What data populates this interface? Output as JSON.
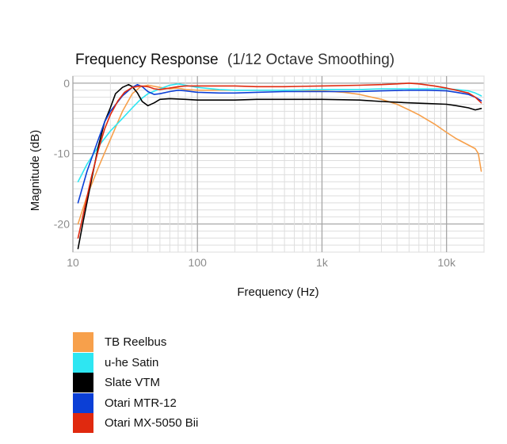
{
  "chart_data": {
    "type": "line",
    "title": "Frequency Response",
    "subtitle": "(1/12 Octave Smoothing)",
    "xlabel": "Frequency (Hz)",
    "ylabel": "Magnitude (dB)",
    "xscale": "log",
    "xlim": [
      10,
      20000
    ],
    "ylim": [
      -24,
      1
    ],
    "xticks": [
      {
        "value": 10,
        "label": "10"
      },
      {
        "value": 100,
        "label": "100"
      },
      {
        "value": 1000,
        "label": "1k"
      },
      {
        "value": 10000,
        "label": "10k"
      }
    ],
    "yticks": [
      {
        "value": 0,
        "label": "0"
      },
      {
        "value": -10,
        "label": "-10"
      },
      {
        "value": -20,
        "label": "-20"
      }
    ],
    "grid": true,
    "legend_position": "bottom-left",
    "series": [
      {
        "name": "TB Reelbus",
        "color": "#f7a04b",
        "x": [
          11,
          13,
          16,
          20,
          25,
          30,
          35,
          40,
          50,
          60,
          70,
          80,
          100,
          150,
          200,
          300,
          500,
          700,
          1000,
          1500,
          2000,
          3000,
          4000,
          5000,
          6000,
          8000,
          10000,
          12000,
          15000,
          17000,
          18000,
          19000
        ],
        "y": [
          -20,
          -16,
          -12,
          -8,
          -4,
          -1.5,
          -0.5,
          -0.3,
          -0.6,
          -0.8,
          -0.7,
          -0.9,
          -1.0,
          -1.0,
          -1.0,
          -1.0,
          -1.0,
          -1.0,
          -1.1,
          -1.3,
          -1.6,
          -2.3,
          -3.0,
          -3.8,
          -4.5,
          -5.8,
          -7.0,
          -7.9,
          -8.8,
          -9.3,
          -10.0,
          -12.5
        ]
      },
      {
        "name": "u-he Satin",
        "color": "#2ee6f2",
        "x": [
          11,
          13,
          16,
          20,
          25,
          30,
          35,
          40,
          50,
          60,
          70,
          80,
          100,
          150,
          200,
          300,
          500,
          1000,
          2000,
          3000,
          5000,
          7000,
          10000,
          12000,
          15000,
          17000,
          19000
        ],
        "y": [
          -14,
          -11.5,
          -9,
          -6.8,
          -5,
          -3.5,
          -2.3,
          -1.5,
          -0.8,
          -0.3,
          -0.1,
          -0.3,
          -0.6,
          -0.9,
          -1.0,
          -1.0,
          -1.0,
          -0.9,
          -0.9,
          -0.8,
          -0.8,
          -0.8,
          -0.8,
          -0.9,
          -1.1,
          -1.4,
          -1.8
        ]
      },
      {
        "name": "Slate VTM",
        "color": "#000000",
        "x": [
          11,
          12,
          14,
          16,
          18,
          20,
          22,
          25,
          28,
          30,
          33,
          36,
          40,
          45,
          50,
          60,
          80,
          100,
          150,
          200,
          300,
          500,
          1000,
          2000,
          3000,
          5000,
          7000,
          10000,
          12000,
          15000,
          17000,
          19000
        ],
        "y": [
          -23.5,
          -20,
          -14,
          -9,
          -5.5,
          -3.5,
          -1.5,
          -0.6,
          -0.2,
          -0.5,
          -1.4,
          -2.6,
          -3.2,
          -2.8,
          -2.3,
          -2.2,
          -2.3,
          -2.4,
          -2.4,
          -2.4,
          -2.3,
          -2.3,
          -2.3,
          -2.4,
          -2.6,
          -2.8,
          -2.9,
          -3.0,
          -3.2,
          -3.5,
          -3.8,
          -3.6
        ]
      },
      {
        "name": "Otari MTR-12",
        "color": "#0b3fd6",
        "x": [
          11,
          13,
          16,
          18,
          20,
          25,
          30,
          33,
          36,
          40,
          45,
          50,
          60,
          70,
          80,
          100,
          150,
          200,
          300,
          500,
          1000,
          2000,
          3000,
          5000,
          7000,
          10000,
          12000,
          15000,
          17000,
          19000
        ],
        "y": [
          -17,
          -12.5,
          -8,
          -5.5,
          -4,
          -1.8,
          -0.6,
          -0.2,
          -0.5,
          -1.2,
          -1.6,
          -1.5,
          -1.2,
          -1.0,
          -1.1,
          -1.3,
          -1.4,
          -1.4,
          -1.3,
          -1.2,
          -1.2,
          -1.2,
          -1.1,
          -1.0,
          -1.0,
          -1.1,
          -1.3,
          -1.6,
          -2.0,
          -2.5
        ]
      },
      {
        "name": "Otari MX-5050 Bii",
        "color": "#e0290f",
        "x": [
          11,
          12,
          14,
          16,
          18,
          20,
          23,
          26,
          30,
          35,
          40,
          45,
          50,
          60,
          70,
          80,
          100,
          150,
          200,
          300,
          500,
          1000,
          2000,
          3000,
          4000,
          5000,
          6000,
          8000,
          10000,
          12000,
          15000,
          17000,
          19000
        ],
        "y": [
          -22,
          -19,
          -13.5,
          -9.5,
          -6.5,
          -4.5,
          -2.5,
          -1.3,
          -0.6,
          -0.4,
          -0.5,
          -0.8,
          -0.9,
          -0.7,
          -0.5,
          -0.4,
          -0.4,
          -0.4,
          -0.4,
          -0.5,
          -0.5,
          -0.4,
          -0.3,
          -0.2,
          -0.1,
          0.0,
          -0.1,
          -0.4,
          -0.7,
          -1.0,
          -1.4,
          -2.0,
          -2.8
        ]
      }
    ]
  }
}
